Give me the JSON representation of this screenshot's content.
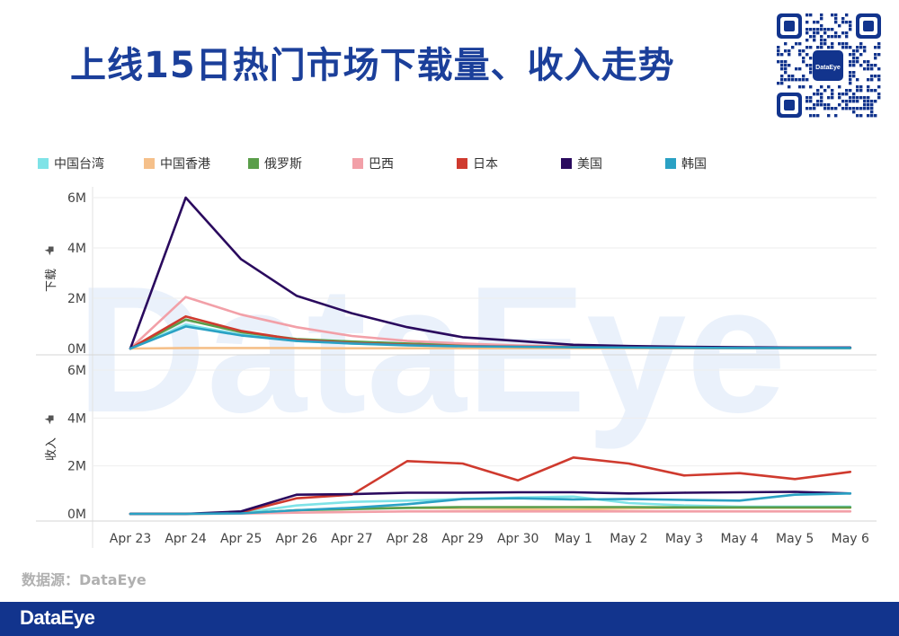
{
  "header": {
    "title": "上线15日热门市场下载量、收入走势",
    "qr_center_text": "DataEye"
  },
  "watermark": "DataEye",
  "source": "数据源：DataEye",
  "footer": {
    "logo": "DataEye"
  },
  "legend": [
    {
      "name": "中国台湾",
      "color": "#7fe3e7"
    },
    {
      "name": "中国香港",
      "color": "#f5c08a"
    },
    {
      "name": "俄罗斯",
      "color": "#5a9e4a"
    },
    {
      "name": "巴西",
      "color": "#f2a0a8"
    },
    {
      "name": "日本",
      "color": "#cf3a2e"
    },
    {
      "name": "美国",
      "color": "#2a0a5e"
    },
    {
      "name": "韩国",
      "color": "#2aa1c4"
    }
  ],
  "chart_data": [
    {
      "type": "line",
      "ylabel": "下载",
      "yticks": [
        "0M",
        "2M",
        "4M",
        "6M"
      ],
      "ylim": [
        0,
        6
      ],
      "x": [
        "Apr 23",
        "Apr 24",
        "Apr 25",
        "Apr 26",
        "Apr 27",
        "Apr 28",
        "Apr 29",
        "Apr 30",
        "May 1",
        "May 2",
        "May 3",
        "May 4",
        "May 5",
        "May 6"
      ],
      "series": [
        {
          "name": "中国台湾",
          "color": "#7fe3e7",
          "values": [
            0,
            0.95,
            0.55,
            0.3,
            0.2,
            0.15,
            0.1,
            0.08,
            0.05,
            0.04,
            0.03,
            0.02,
            0.02,
            0.02
          ]
        },
        {
          "name": "中国香港",
          "color": "#f5c08a",
          "values": [
            0,
            0.02,
            0.02,
            0.02,
            0.01,
            0.01,
            0.01,
            0.01,
            0.01,
            0.01,
            0.01,
            0.01,
            0.01,
            0.01
          ]
        },
        {
          "name": "俄罗斯",
          "color": "#5a9e4a",
          "values": [
            0,
            1.15,
            0.65,
            0.38,
            0.28,
            0.2,
            0.14,
            0.1,
            0.07,
            0.05,
            0.04,
            0.03,
            0.03,
            0.02
          ]
        },
        {
          "name": "巴西",
          "color": "#f2a0a8",
          "values": [
            0,
            2.05,
            1.35,
            0.85,
            0.5,
            0.3,
            0.2,
            0.12,
            0.08,
            0.06,
            0.05,
            0.04,
            0.03,
            0.03
          ]
        },
        {
          "name": "日本",
          "color": "#cf3a2e",
          "values": [
            0,
            1.28,
            0.7,
            0.35,
            0.22,
            0.15,
            0.1,
            0.08,
            0.06,
            0.05,
            0.04,
            0.03,
            0.03,
            0.03
          ]
        },
        {
          "name": "美国",
          "color": "#2a0a5e",
          "values": [
            0,
            6.0,
            3.55,
            2.1,
            1.4,
            0.85,
            0.45,
            0.3,
            0.15,
            0.1,
            0.07,
            0.05,
            0.04,
            0.04
          ]
        },
        {
          "name": "韩国",
          "color": "#2aa1c4",
          "values": [
            0,
            0.88,
            0.52,
            0.3,
            0.2,
            0.13,
            0.09,
            0.07,
            0.05,
            0.04,
            0.03,
            0.02,
            0.02,
            0.02
          ]
        }
      ]
    },
    {
      "type": "line",
      "ylabel": "收入",
      "yticks": [
        "0M",
        "2M",
        "4M",
        "6M"
      ],
      "ylim": [
        0,
        6
      ],
      "x": [
        "Apr 23",
        "Apr 24",
        "Apr 25",
        "Apr 26",
        "Apr 27",
        "Apr 28",
        "Apr 29",
        "Apr 30",
        "May 1",
        "May 2",
        "May 3",
        "May 4",
        "May 5",
        "May 6"
      ],
      "xticks": [
        "Apr 23",
        "Apr 24",
        "Apr 25",
        "Apr 26",
        "Apr 27",
        "Apr 28",
        "Apr 29",
        "Apr 30",
        "May 1",
        "May 2",
        "May 3",
        "May 4",
        "May 5",
        "May 6"
      ],
      "series": [
        {
          "name": "中国台湾",
          "color": "#7fe3e7",
          "values": [
            0,
            0,
            0.03,
            0.35,
            0.5,
            0.55,
            0.62,
            0.68,
            0.72,
            0.45,
            0.35,
            0.3,
            0.3,
            0.3
          ]
        },
        {
          "name": "中国香港",
          "color": "#f5c08a",
          "values": [
            0,
            0,
            0.02,
            0.15,
            0.22,
            0.25,
            0.22,
            0.2,
            0.18,
            0.22,
            0.25,
            0.25,
            0.25,
            0.25
          ]
        },
        {
          "name": "俄罗斯",
          "color": "#5a9e4a",
          "values": [
            0,
            0,
            0.02,
            0.15,
            0.2,
            0.25,
            0.28,
            0.28,
            0.28,
            0.28,
            0.27,
            0.27,
            0.27,
            0.27
          ]
        },
        {
          "name": "巴西",
          "color": "#f2a0a8",
          "values": [
            0,
            0,
            0.01,
            0.05,
            0.08,
            0.1,
            0.1,
            0.1,
            0.1,
            0.1,
            0.1,
            0.1,
            0.1,
            0.1
          ]
        },
        {
          "name": "日本",
          "color": "#cf3a2e",
          "values": [
            0,
            0,
            0.06,
            0.65,
            0.8,
            2.2,
            2.1,
            1.4,
            2.35,
            2.1,
            1.6,
            1.7,
            1.45,
            1.75
          ]
        },
        {
          "name": "美国",
          "color": "#2a0a5e",
          "values": [
            0,
            0,
            0.1,
            0.8,
            0.82,
            0.88,
            0.88,
            0.9,
            0.9,
            0.85,
            0.88,
            0.9,
            0.92,
            0.85
          ]
        },
        {
          "name": "韩国",
          "color": "#2aa1c4",
          "values": [
            0,
            0,
            0.02,
            0.15,
            0.25,
            0.4,
            0.62,
            0.65,
            0.6,
            0.62,
            0.58,
            0.55,
            0.8,
            0.85
          ]
        }
      ]
    }
  ]
}
